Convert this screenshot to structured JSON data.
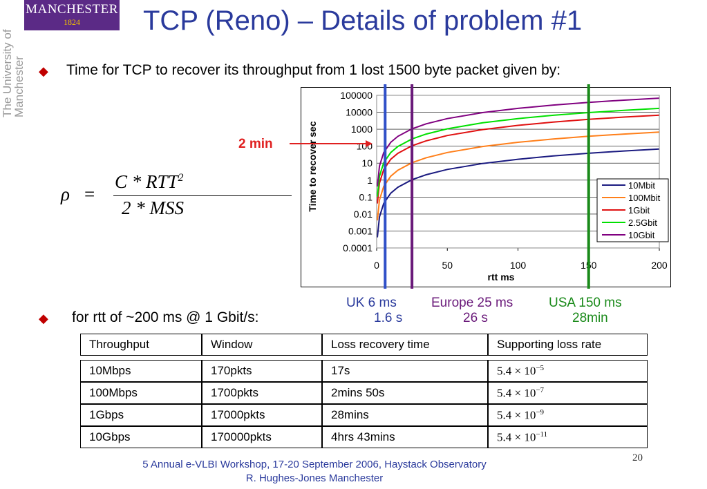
{
  "logo": {
    "name": "MANCHESTER",
    "year": "1824"
  },
  "university": "The University of Manchester",
  "title": "TCP (Reno) – Details of problem #1",
  "bullets": {
    "first": "Time for TCP to recover its throughput from 1 lost 1500 byte packet given by:",
    "second": "for rtt of ~200 ms @ 1 Gbit/s:"
  },
  "formula": {
    "lhs": "ρ",
    "eq": "=",
    "numerator": "C * RTT",
    "exponent": "2",
    "denominator": "2 * MSS"
  },
  "annotation": "2 min",
  "chart_data": {
    "type": "line",
    "xlabel": "rtt ms",
    "ylabel": "Time to recover sec",
    "x_ticks": [
      "0",
      "50",
      "100",
      "150",
      "200"
    ],
    "y_ticks": [
      "100000",
      "10000",
      "1000",
      "100",
      "10",
      "1",
      "0.1",
      "0.01",
      "0.001",
      "0.0001"
    ],
    "xlim": [
      0,
      200
    ],
    "ylim": [
      0.0001,
      100000
    ],
    "y_scale": "log",
    "legend_position": "right",
    "x": [
      0.5,
      2,
      5,
      10,
      15,
      25,
      35,
      50,
      75,
      100,
      125,
      150,
      175,
      200
    ],
    "series": [
      {
        "name": "10Mbit",
        "color": "#1a1a80",
        "values": [
          0.00042,
          0.0068,
          0.042,
          0.17,
          0.38,
          1.06,
          2.08,
          4.25,
          9.56,
          17,
          26.6,
          38.3,
          52.1,
          68
        ]
      },
      {
        "name": "100Mbit",
        "color": "#ff7f1a",
        "values": [
          0.0042,
          0.068,
          0.42,
          1.7,
          3.8,
          10.6,
          20.8,
          42.5,
          95.6,
          170,
          266,
          383,
          521,
          680
        ]
      },
      {
        "name": "1Gbit",
        "color": "#e01010",
        "values": [
          0.042,
          0.68,
          4.2,
          17,
          38,
          106,
          208,
          425,
          956,
          1700,
          2660,
          3830,
          5210,
          6800
        ]
      },
      {
        "name": "2.5Gbit",
        "color": "#00e000",
        "values": [
          0.106,
          1.7,
          10.6,
          42.5,
          95.6,
          266,
          521,
          1060,
          2390,
          4250,
          6640,
          9560,
          13000,
          17000
        ]
      },
      {
        "name": "10Gbit",
        "color": "#800080",
        "values": [
          0.42,
          6.8,
          42,
          170,
          380,
          1060,
          2080,
          4250,
          9560,
          17000,
          26600,
          38300,
          52100,
          68000
        ]
      }
    ],
    "markers": [
      {
        "x": 6,
        "color": "#3050c8"
      },
      {
        "x": 25,
        "color": "#6a1a7a"
      },
      {
        "x": 150,
        "color": "#1a8a1a"
      }
    ]
  },
  "locations": [
    {
      "label": "UK 6 ms",
      "time": "1.6 s",
      "color": "#2a3a9c"
    },
    {
      "label": "Europe 25 ms",
      "time": "26 s",
      "color": "#6a1a7a"
    },
    {
      "label": "USA 150 ms",
      "time": "28min",
      "color": "#1a8a1a"
    }
  ],
  "table": {
    "headers": [
      "Throughput",
      "Window",
      "Loss recovery time",
      "Supporting loss rate"
    ],
    "rows": [
      {
        "throughput": "10Mbps",
        "window": "170pkts",
        "recovery": "17s",
        "mant": "5.4 × 10",
        "exp": "−5"
      },
      {
        "throughput": "100Mbps",
        "window": "1700pkts",
        "recovery": "2mins 50s",
        "mant": "5.4 × 10",
        "exp": "−7"
      },
      {
        "throughput": "1Gbps",
        "window": "17000pkts",
        "recovery": "28mins",
        "mant": "5.4 × 10",
        "exp": "−9"
      },
      {
        "throughput": "10Gbps",
        "window": "170000pkts",
        "recovery": "4hrs 43mins",
        "mant": "5.4 × 10",
        "exp": "−11"
      }
    ]
  },
  "footer": {
    "line1": "5 Annual e-VLBI Workshop, 17-20 September 2006, Haystack Observatory",
    "line2": "R. Hughes-Jones  Manchester"
  },
  "page_number": "20"
}
